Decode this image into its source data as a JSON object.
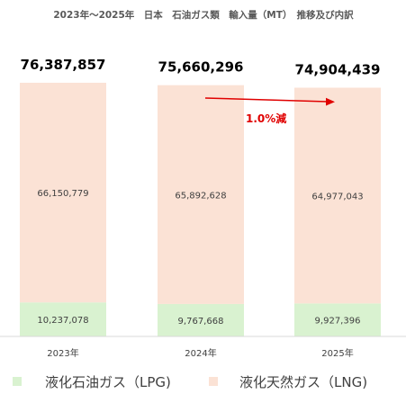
{
  "chart_data": {
    "type": "bar",
    "stacked": true,
    "title": "2023年～2025年　日本　石油ガス類　輸入量（MT）　推移及び内訳",
    "categories": [
      "2023年",
      "2024年",
      "2025年"
    ],
    "series": [
      {
        "name": "液化石油ガス（LPG)",
        "values": [
          10237078,
          9767668,
          9927396
        ],
        "labels": [
          "10,237,078",
          "9,767,668",
          "9,927,396"
        ],
        "color": "#d9f2d0"
      },
      {
        "name": "液化天然ガス（LNG)",
        "values": [
          66150779,
          65892628,
          64977043
        ],
        "labels": [
          "66,150,779",
          "65,892,628",
          "64,977,043"
        ],
        "color": "#fbe2d5"
      }
    ],
    "totals": [
      76387857,
      75660296,
      74904439
    ],
    "total_labels": [
      "76,387,857",
      "75,660,296",
      "74,904,439"
    ],
    "annotation": {
      "text": "1.0%減",
      "color": "#e00000"
    },
    "legend_position": "bottom",
    "grid": false,
    "ylim": [
      0,
      76387857
    ]
  }
}
